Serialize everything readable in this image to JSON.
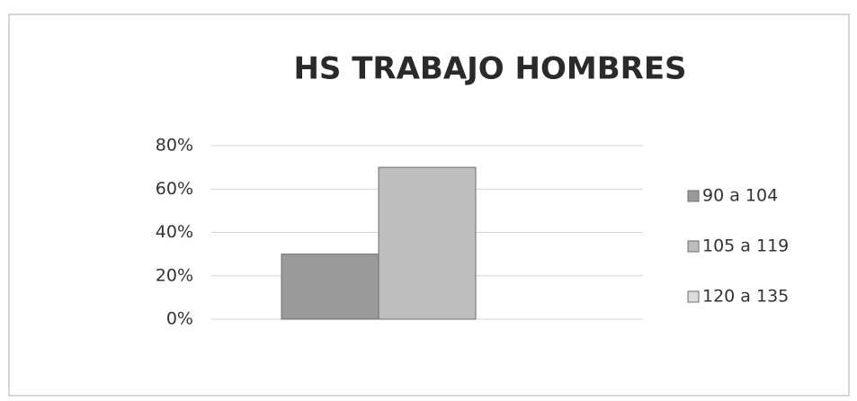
{
  "chart_data": {
    "type": "bar",
    "title": "HS TRABAJO HOMBRES",
    "categories": [
      null
    ],
    "series": [
      {
        "name": "90 a 104",
        "color": "#9a9a9a",
        "values": [
          30
        ]
      },
      {
        "name": "105 a 119",
        "color": "#bdbdbd",
        "values": [
          70
        ]
      },
      {
        "name": "120 a 135",
        "color": "#dcdcdc",
        "values": [
          0
        ]
      }
    ],
    "ylim": [
      0,
      80
    ],
    "yticks": [
      {
        "value": 0,
        "label": "0%"
      },
      {
        "value": 20,
        "label": "20%"
      },
      {
        "value": 40,
        "label": "40%"
      },
      {
        "value": 60,
        "label": "60%"
      },
      {
        "value": 80,
        "label": "80%"
      }
    ],
    "grid": true,
    "legend": "right"
  }
}
